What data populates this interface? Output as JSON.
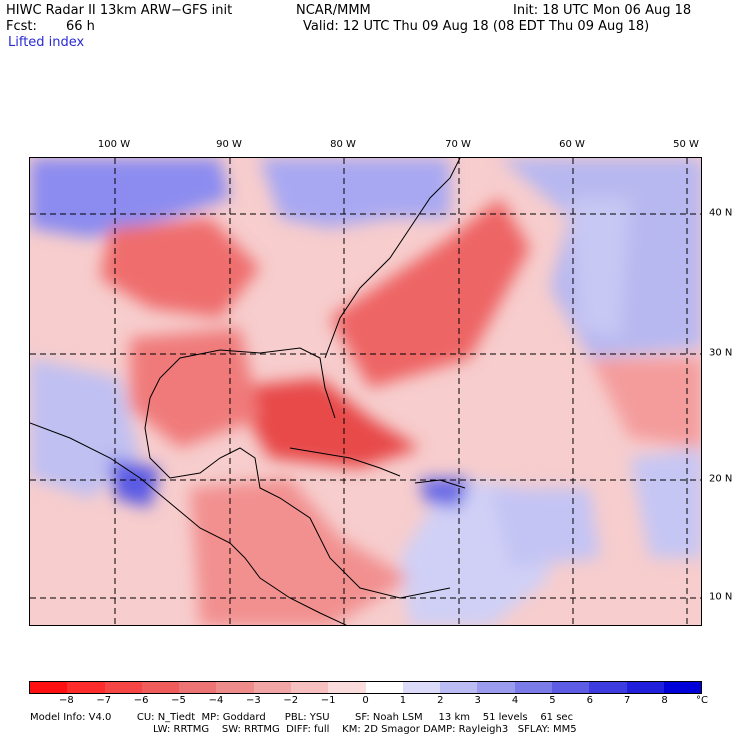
{
  "header": {
    "title": "HIWC Radar II 13km ARW−GFS init",
    "org": "NCAR/MMM",
    "init": "Init: 18 UTC Mon 06 Aug 18",
    "fcst_label": "Fcst:",
    "fcst_value": "66 h",
    "valid": "Valid: 12 UTC Thu 09 Aug 18 (08 EDT Thu 09 Aug 18)",
    "field": "Lifted index"
  },
  "map": {
    "lon_labels": [
      "100 W",
      "90 W",
      "80 W",
      "70 W",
      "60 W",
      "50 W"
    ],
    "lat_labels": [
      "40 N",
      "30 N",
      "20 N",
      "10 N"
    ]
  },
  "colorbar": {
    "unit": "°C",
    "ticks": [
      "−8",
      "−7",
      "−6",
      "−5",
      "−4",
      "−3",
      "−2",
      "−1",
      "0",
      "1",
      "2",
      "3",
      "4",
      "5",
      "6",
      "7",
      "8"
    ],
    "colors": [
      "#ff1010",
      "#ff2c2c",
      "#f54545",
      "#f05c5c",
      "#ec7474",
      "#ee8b8b",
      "#f2a5a5",
      "#f6c0c0",
      "#fadcdc",
      "#ffffff",
      "#dcdcfa",
      "#bcbcf4",
      "#9c9cee",
      "#7c7ce8",
      "#5c5ce4",
      "#3c3ce0",
      "#2020dc",
      "#0000d8"
    ]
  },
  "footer": {
    "line1": "Model Info: V4.0        CU: N_Tiedt  MP: Goddard      PBL: YSU        SF: Noah LSM     13 km    51 levels    61 sec",
    "line2": "LW: RRTMG    SW: RRTMG  DIFF: full    KM: 2D Smagor DAMP: Rayleigh3   SFLAY: MM5"
  }
}
